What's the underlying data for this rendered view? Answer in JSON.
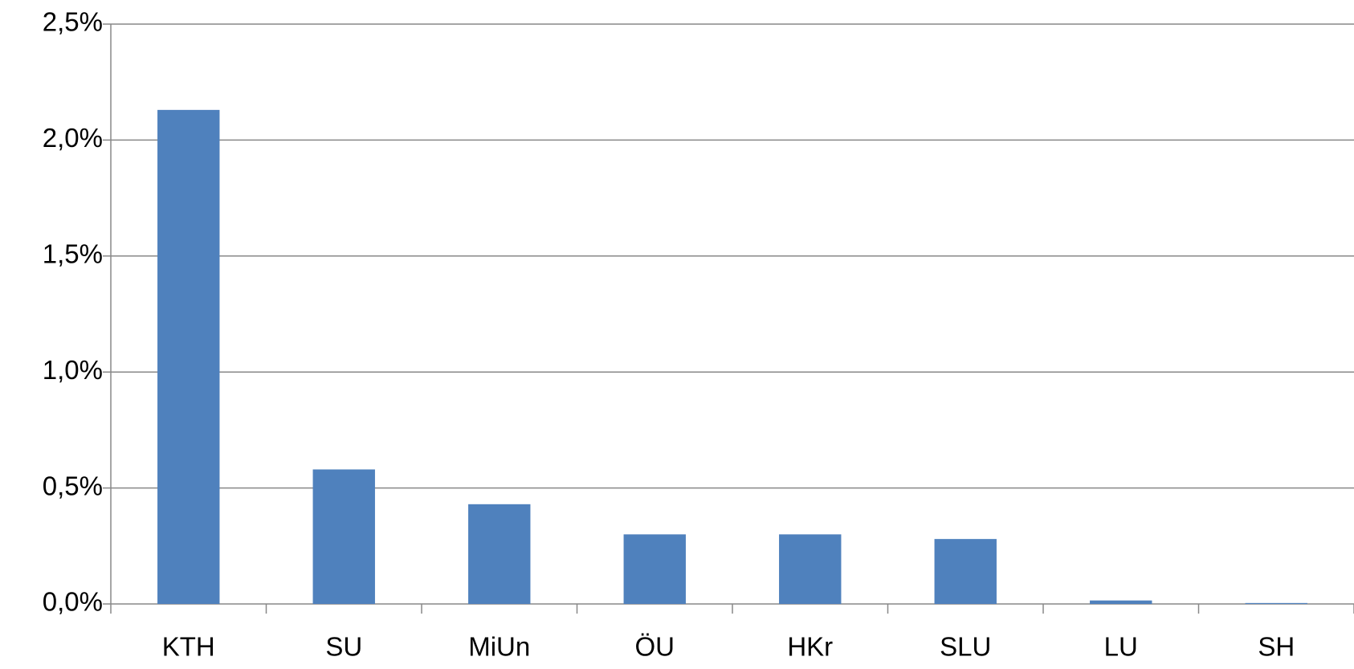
{
  "chart_data": {
    "type": "bar",
    "categories": [
      "KTH",
      "SU",
      "MiUn",
      "ÖU",
      "HKr",
      "SLU",
      "LU",
      "SH"
    ],
    "values": [
      2.13,
      0.58,
      0.43,
      0.3,
      0.3,
      0.28,
      0.015,
      0.004
    ],
    "color": "#4f81bd",
    "ylim": [
      0,
      2.5
    ],
    "yticks": [
      {
        "value": 0,
        "label": "0,0%"
      },
      {
        "value": 0.5,
        "label": "0,5%"
      },
      {
        "value": 1,
        "label": "1,0%"
      },
      {
        "value": 1.5,
        "label": "1,5%"
      },
      {
        "value": 2,
        "label": "2,0%"
      },
      {
        "value": 2.5,
        "label": "2,5%"
      }
    ],
    "grid": true
  }
}
